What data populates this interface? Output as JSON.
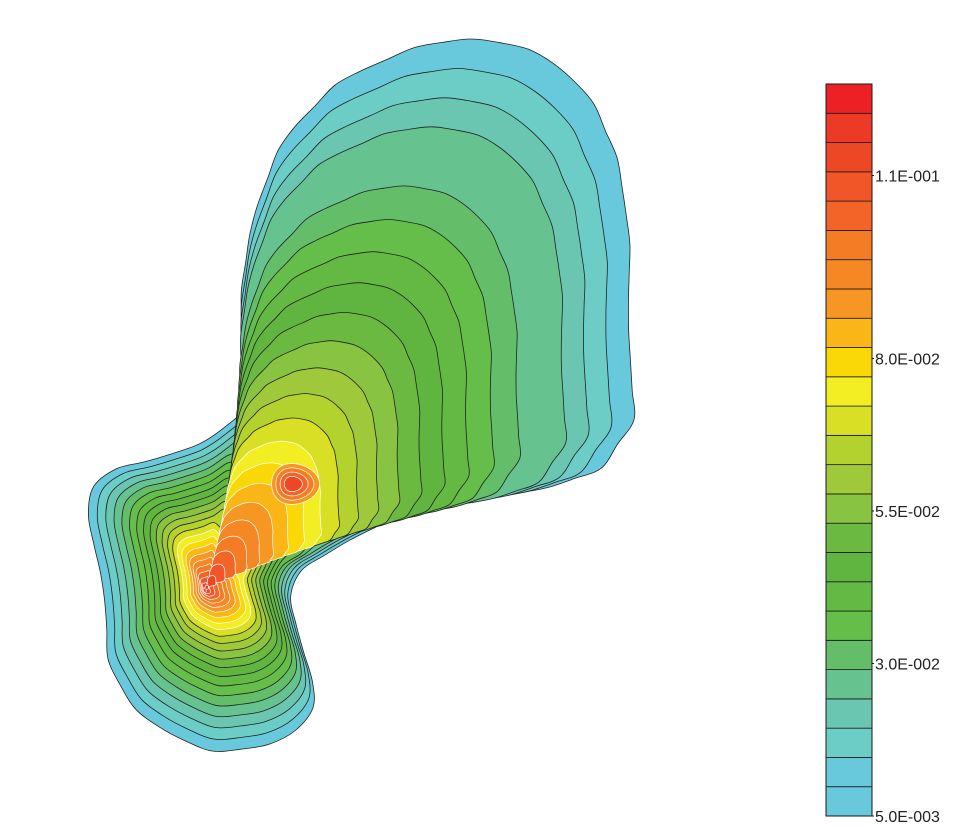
{
  "chart_data": {
    "type": "heatmap",
    "subtype": "filled-contour",
    "title": "",
    "xlabel": "",
    "ylabel": "",
    "grid": false,
    "legend_position": "right",
    "colorbar": {
      "min": 0.005,
      "max": 0.125,
      "step": 0.005,
      "ticks": [
        {
          "value": 0.005,
          "label": "5.0E-003"
        },
        {
          "value": 0.03,
          "label": "3.0E-002"
        },
        {
          "value": 0.055,
          "label": "5.5E-002"
        },
        {
          "value": 0.08,
          "label": "8.0E-002"
        },
        {
          "value": 0.11,
          "label": "1.1E-001"
        }
      ],
      "colors": [
        "#67c9db",
        "#67c9db",
        "#6ccdc6",
        "#6bc6b1",
        "#66c28f",
        "#63bd69",
        "#65bd4a",
        "#63b943",
        "#60b541",
        "#6cb941",
        "#88c341",
        "#9fc83b",
        "#b4d22e",
        "#d8df24",
        "#f2ee23",
        "#fad808",
        "#fab517",
        "#f69723",
        "#f58725",
        "#f47c24",
        "#f26427",
        "#f05628",
        "#ee4726",
        "#ed3a26",
        "#ed2125"
      ]
    },
    "peak": {
      "value": 0.125,
      "location": "lower-left"
    },
    "secondary_peak": {
      "value": 0.1,
      "location": "center"
    }
  }
}
